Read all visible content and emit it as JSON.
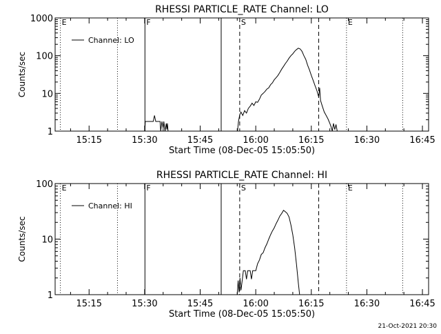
{
  "chart_data": [
    {
      "type": "line",
      "title": "RHESSI PARTICLE_RATE Channel: LO",
      "ylabel": "Counts/sec",
      "xlabel": "Start Time (08-Dec-05 15:05:50)",
      "yscale": "log",
      "ylim": [
        1,
        1000
      ],
      "xlim": [
        "15:05:50",
        "16:46:40"
      ],
      "y_ticks": [
        {
          "value": 1,
          "label": "1"
        },
        {
          "value": 10,
          "label": "10"
        },
        {
          "value": 100,
          "label": "100"
        },
        {
          "value": 1000,
          "label": "1000"
        }
      ],
      "x_ticks": [
        {
          "time": "15:15",
          "label": "15:15"
        },
        {
          "time": "15:30",
          "label": "15:30"
        },
        {
          "time": "15:45",
          "label": "15:45"
        },
        {
          "time": "16:00",
          "label": "16:00"
        },
        {
          "time": "16:15",
          "label": "16:15"
        },
        {
          "time": "16:30",
          "label": "16:30"
        },
        {
          "time": "16:45",
          "label": "16:45"
        }
      ],
      "legend": {
        "placement": "top-left",
        "entries": [
          "Channel: LO"
        ]
      },
      "markers": [
        {
          "time": "15:07:15",
          "style": "dotted",
          "label": "E"
        },
        {
          "time": "15:22:40",
          "style": "dotted",
          "label": ""
        },
        {
          "time": "15:30:05",
          "style": "solid",
          "label": "F"
        },
        {
          "time": "15:50:40",
          "style": "solid",
          "label": ""
        },
        {
          "time": "15:55:40",
          "style": "dashed",
          "label": "S"
        },
        {
          "time": "16:17:00",
          "style": "dashed",
          "label": ""
        },
        {
          "time": "16:24:30",
          "style": "dotted",
          "label": "E"
        },
        {
          "time": "16:39:40",
          "style": "dotted",
          "label": ""
        }
      ],
      "series": [
        {
          "name": "Channel: LO",
          "segments": [
            [
              [
                "15:30:05",
                1
              ],
              [
                "15:30:10",
                1.8
              ],
              [
                "15:32:20",
                1.8
              ],
              [
                "15:32:40",
                2.6
              ],
              [
                "15:33:00",
                1.8
              ],
              [
                "15:34:10",
                1.8
              ],
              [
                "15:34:20",
                1
              ],
              [
                "15:34:40",
                1.8
              ],
              [
                "15:35:00",
                1.2
              ],
              [
                "15:35:10",
                1.8
              ],
              [
                "15:35:30",
                1
              ],
              [
                "15:35:50",
                1.6
              ],
              [
                "15:36:00",
                1.1
              ],
              [
                "15:36:10",
                1.6
              ],
              [
                "15:36:20",
                1
              ]
            ],
            [
              [
                "15:55:05",
                1
              ],
              [
                "15:55:20",
                1.8
              ],
              [
                "15:55:40",
                2.7
              ],
              [
                "15:56:00",
                3.2
              ],
              [
                "15:56:30",
                2.6
              ],
              [
                "15:57:00",
                3.5
              ],
              [
                "15:57:30",
                3.0
              ],
              [
                "15:58:00",
                4.0
              ],
              [
                "15:58:30",
                4.6
              ],
              [
                "15:59:00",
                5.5
              ],
              [
                "15:59:30",
                4.8
              ],
              [
                "16:00:00",
                6.0
              ],
              [
                "16:00:30",
                5.8
              ],
              [
                "16:01:00",
                7.0
              ],
              [
                "16:01:30",
                9.0
              ],
              [
                "16:02:00",
                10.0
              ],
              [
                "16:02:30",
                11.2
              ],
              [
                "16:03:00",
                13.0
              ],
              [
                "16:03:30",
                14.0
              ],
              [
                "16:04:00",
                17.0
              ],
              [
                "16:04:30",
                19.0
              ],
              [
                "16:05:00",
                23.0
              ],
              [
                "16:05:30",
                26.0
              ],
              [
                "16:06:00",
                30.0
              ],
              [
                "16:06:30",
                36.0
              ],
              [
                "16:07:00",
                44.0
              ],
              [
                "16:07:30",
                52.0
              ],
              [
                "16:08:00",
                62.0
              ],
              [
                "16:08:30",
                72.0
              ],
              [
                "16:09:00",
                86.0
              ],
              [
                "16:09:30",
                100.0
              ],
              [
                "16:10:00",
                112.0
              ],
              [
                "16:10:30",
                130.0
              ],
              [
                "16:11:00",
                145.0
              ],
              [
                "16:11:30",
                158.0
              ],
              [
                "16:12:00",
                150.0
              ],
              [
                "16:12:30",
                130.0
              ],
              [
                "16:13:00",
                100.0
              ],
              [
                "16:13:30",
                80.0
              ],
              [
                "16:14:00",
                56.0
              ],
              [
                "16:14:30",
                42.0
              ],
              [
                "16:15:00",
                30.0
              ],
              [
                "16:15:30",
                22.0
              ],
              [
                "16:16:00",
                16.0
              ],
              [
                "16:16:30",
                12.0
              ],
              [
                "16:17:00",
                8.0
              ],
              [
                "16:17:15",
                14.0
              ],
              [
                "16:17:30",
                6.5
              ],
              [
                "16:18:00",
                4.5
              ],
              [
                "16:18:30",
                3.2
              ],
              [
                "16:19:00",
                2.6
              ],
              [
                "16:19:30",
                2.1
              ],
              [
                "16:20:00",
                1.6
              ],
              [
                "16:20:20",
                1.3
              ],
              [
                "16:20:40",
                1
              ],
              [
                "16:21:00",
                1.6
              ],
              [
                "16:21:20",
                1.1
              ],
              [
                "16:21:40",
                1.5
              ],
              [
                "16:22:00",
                1
              ]
            ]
          ]
        }
      ]
    },
    {
      "type": "line",
      "title": "RHESSI PARTICLE_RATE Channel: HI",
      "ylabel": "Counts/sec",
      "xlabel": "Start Time (08-Dec-05 15:05:50)",
      "yscale": "log",
      "ylim": [
        1,
        100
      ],
      "xlim": [
        "15:05:50",
        "16:46:40"
      ],
      "y_ticks": [
        {
          "value": 1,
          "label": "1"
        },
        {
          "value": 10,
          "label": "10"
        },
        {
          "value": 100,
          "label": "100"
        }
      ],
      "x_ticks": [
        {
          "time": "15:15",
          "label": "15:15"
        },
        {
          "time": "15:30",
          "label": "15:30"
        },
        {
          "time": "15:45",
          "label": "15:45"
        },
        {
          "time": "16:00",
          "label": "16:00"
        },
        {
          "time": "16:15",
          "label": "16:15"
        },
        {
          "time": "16:30",
          "label": "16:30"
        },
        {
          "time": "16:45",
          "label": "16:45"
        }
      ],
      "legend": {
        "placement": "top-left",
        "entries": [
          "Channel: HI"
        ]
      },
      "markers": [
        {
          "time": "15:07:15",
          "style": "dotted",
          "label": "E"
        },
        {
          "time": "15:22:40",
          "style": "dotted",
          "label": ""
        },
        {
          "time": "15:30:05",
          "style": "solid",
          "label": "F"
        },
        {
          "time": "15:50:40",
          "style": "solid",
          "label": ""
        },
        {
          "time": "15:55:40",
          "style": "dashed",
          "label": "S"
        },
        {
          "time": "16:17:00",
          "style": "dashed",
          "label": ""
        },
        {
          "time": "16:24:30",
          "style": "dotted",
          "label": "E"
        },
        {
          "time": "16:39:40",
          "style": "dotted",
          "label": ""
        }
      ],
      "series": [
        {
          "name": "Channel: HI",
          "segments": [
            [
              [
                "15:55:00",
                1
              ],
              [
                "15:55:15",
                1.8
              ],
              [
                "15:55:30",
                1.1
              ],
              [
                "15:55:45",
                2.0
              ],
              [
                "15:56:00",
                1.2
              ],
              [
                "15:56:15",
                1.6
              ],
              [
                "15:56:40",
                2.7
              ],
              [
                "15:57:10",
                2.7
              ],
              [
                "15:57:30",
                1.9
              ],
              [
                "15:57:50",
                2.7
              ],
              [
                "15:58:30",
                2.7
              ],
              [
                "15:58:50",
                1.9
              ],
              [
                "15:59:10",
                2.7
              ],
              [
                "16:00:00",
                2.7
              ],
              [
                "16:00:30",
                3.6
              ],
              [
                "16:01:00",
                4.2
              ],
              [
                "16:01:30",
                5.3
              ],
              [
                "16:02:00",
                5.7
              ],
              [
                "16:02:30",
                7.0
              ],
              [
                "16:03:00",
                8.2
              ],
              [
                "16:03:30",
                10.0
              ],
              [
                "16:04:00",
                12.0
              ],
              [
                "16:04:30",
                14.0
              ],
              [
                "16:05:00",
                16.0
              ],
              [
                "16:05:30",
                19.0
              ],
              [
                "16:06:00",
                22.0
              ],
              [
                "16:06:30",
                26.0
              ],
              [
                "16:07:00",
                29.0
              ],
              [
                "16:07:30",
                33.0
              ],
              [
                "16:08:00",
                31.0
              ],
              [
                "16:08:30",
                29.0
              ],
              [
                "16:09:00",
                25.0
              ],
              [
                "16:09:30",
                18.0
              ],
              [
                "16:10:00",
                12.0
              ],
              [
                "16:10:30",
                7.0
              ],
              [
                "16:11:00",
                3.5
              ],
              [
                "16:11:30",
                1.6
              ],
              [
                "16:11:50",
                1
              ]
            ]
          ]
        }
      ]
    }
  ],
  "footer": {
    "timestamp": "21-Oct-2021 20:30"
  }
}
